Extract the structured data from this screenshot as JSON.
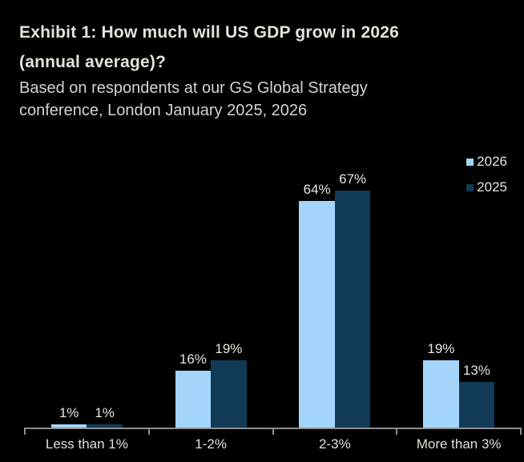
{
  "exhibit": {
    "title_line1": "Exhibit 1: How much will US GDP grow in 2026",
    "title_line2": "(annual average)?",
    "subtitle": "Based on respondents at our GS Global Strategy conference, London January 2025, 2026"
  },
  "chart_data": {
    "type": "bar",
    "categories": [
      "Less than 1%",
      "1-2%",
      "2-3%",
      "More than 3%"
    ],
    "series": [
      {
        "name": "2026",
        "color": "#A3D5FB",
        "values": [
          1,
          16,
          64,
          19
        ]
      },
      {
        "name": "2025",
        "color": "#113A57",
        "values": [
          1,
          19,
          67,
          13
        ]
      }
    ],
    "value_suffix": "%",
    "data_labels": [
      "1%",
      "1%",
      "16%",
      "19%",
      "64%",
      "67%",
      "19%",
      "13%"
    ],
    "xlabel": "",
    "ylabel": "",
    "ylim": [
      0,
      70
    ],
    "grid": false,
    "legend_position": "top-right",
    "axis_color": "#8E8E8E",
    "background_color": "#000000"
  }
}
